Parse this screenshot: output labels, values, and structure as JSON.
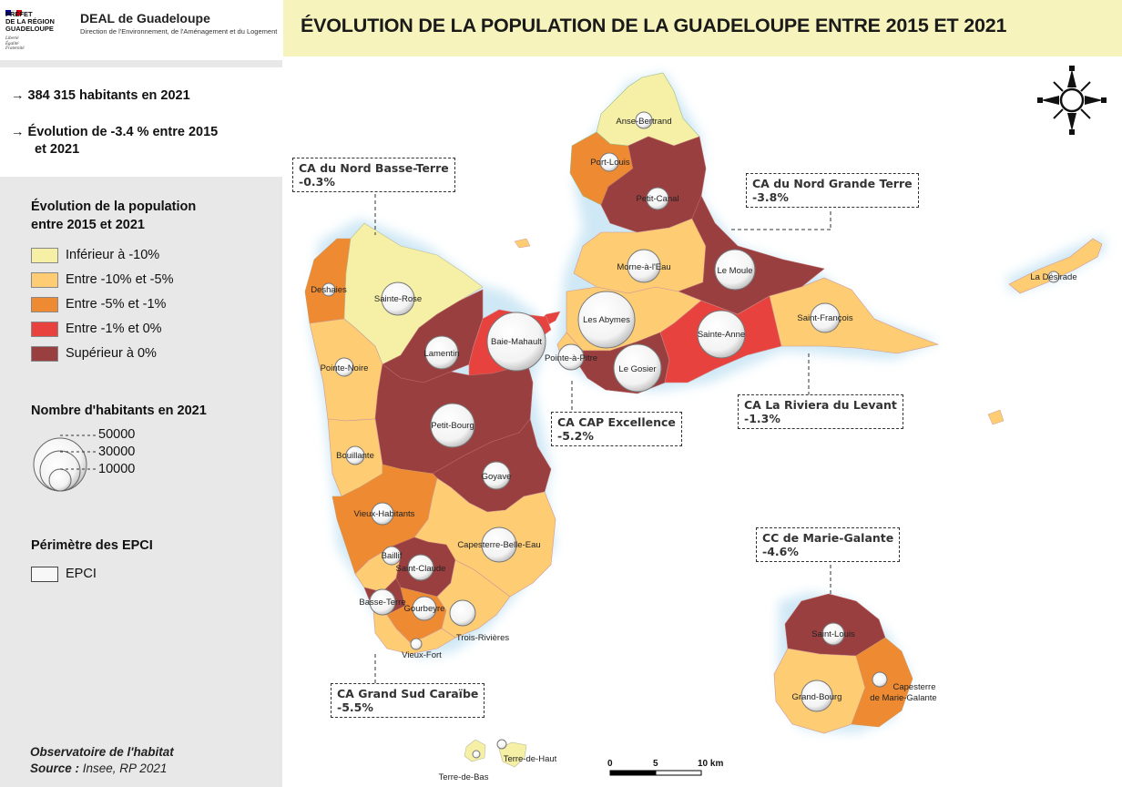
{
  "header": {
    "prefet_lines": [
      "PRÉFET",
      "DE LA RÉGION",
      "GUADELOUPE"
    ],
    "devise_lines": [
      "Liberté",
      "Égalité",
      "Fraternité"
    ],
    "deal_title": "DEAL de Guadeloupe",
    "deal_subtitle": "Direction de l'Environnement, de l'Aménagement et du Logement",
    "map_title": "ÉVOLUTION DE LA POPULATION DE LA GUADELOUPE ENTRE 2015 ET 2021"
  },
  "stats": {
    "population": "→ 384 315 habitants en 2021",
    "evolution_line1": "→ Évolution de -3.4 % entre 2015",
    "evolution_line2": "et 2021"
  },
  "legend": {
    "evolution_title_1": "Évolution de la population",
    "evolution_title_2": "entre 2015 et 2021",
    "classes": [
      {
        "label": "Inférieur à -10%",
        "color": "#f5f0a6"
      },
      {
        "label": "Entre -10% et -5%",
        "color": "#fdcc73"
      },
      {
        "label": "Entre -5% et -1%",
        "color": "#ee8a31"
      },
      {
        "label": "Entre -1% et 0%",
        "color": "#e8423e"
      },
      {
        "label": "Supérieur à 0%",
        "color": "#9a3f3f"
      }
    ],
    "size_title": "Nombre d'habitants en 2021",
    "sizes": [
      "50000",
      "30000",
      "10000"
    ],
    "epci_title": "Périmètre des EPCI",
    "epci_label": "EPCI"
  },
  "source": {
    "observatoire": "Observatoire de l'habitat",
    "source_label": "Source :",
    "source_value": "Insee, RP 2021"
  },
  "epci_boxes": [
    {
      "name": "CA du Nord Basse-Terre",
      "value": "-0.3%"
    },
    {
      "name": "CA du Nord Grande Terre",
      "value": "-3.8%"
    },
    {
      "name": "CA CAP Excellence",
      "value": "-5.2%"
    },
    {
      "name": "CA La Riviera du Levant",
      "value": "-1.3%"
    },
    {
      "name": "CC de Marie-Galante",
      "value": "-4.6%"
    },
    {
      "name": "CA Grand Sud Caraïbe",
      "value": "-5.5%"
    }
  ],
  "communes": [
    "Anse-Bertrand",
    "Port-Louis",
    "Petit-Canal",
    "Morne-à-l'Eau",
    "Le Moule",
    "Deshaies",
    "Sainte-Rose",
    "Lamentin",
    "Baie-Mahault",
    "Les Abymes",
    "Pointe-à-Pitre",
    "Le Gosier",
    "Sainte-Anne",
    "Saint-François",
    "La Désirade",
    "Pointe-Noire",
    "Petit-Bourg",
    "Goyave",
    "Bouillante",
    "Vieux-Habitants",
    "Capesterre-Belle-Eau",
    "Baillif",
    "Saint-Claude",
    "Basse-Terre",
    "Gourbeyre",
    "Trois-Rivières",
    "Vieux-Fort",
    "Saint-Louis",
    "Grand-Bourg",
    "Capesterre",
    "de Marie-Galante",
    "Terre-de-Haut",
    "Terre-de-Bas"
  ],
  "scale": {
    "ticks": [
      "0",
      "5",
      "10 km"
    ]
  },
  "compass_icon": "compass-rose-icon"
}
